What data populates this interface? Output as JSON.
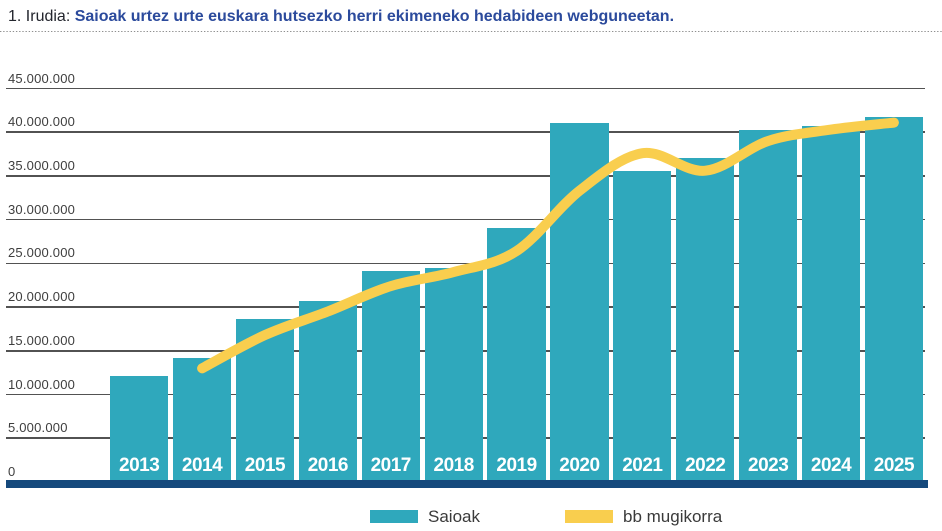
{
  "figure": {
    "label_prefix": "1. Irudia:",
    "title": "Saioak urtez urte euskara hutsezko herri ekimeneko hedabideen webguneetan."
  },
  "chart_data": {
    "type": "bar",
    "title": "Saioak urtez urte euskara hutsezko herri ekimeneko hedabideen webguneetan.",
    "categories": [
      "2013",
      "2014",
      "2015",
      "2016",
      "2017",
      "2018",
      "2019",
      "2020",
      "2021",
      "2022",
      "2023",
      "2024",
      "2025"
    ],
    "series": [
      {
        "name": "Saioak",
        "type": "bar",
        "color": "#2fa8bc",
        "values": [
          12100000,
          14200000,
          18600000,
          20700000,
          24100000,
          24500000,
          29000000,
          41000000,
          35600000,
          37100000,
          40300000,
          40700000,
          41700000
        ]
      },
      {
        "name": "bb mugikorra",
        "type": "line",
        "color": "#f9ce4e",
        "values": [
          null,
          13000000,
          16800000,
          19500000,
          22400000,
          24000000,
          26400000,
          33300000,
          37600000,
          35600000,
          39000000,
          40300000,
          41100000
        ]
      }
    ],
    "ylim": [
      0,
      45000000
    ],
    "ytick_interval": 5000000,
    "yticks": [
      {
        "value": 0,
        "label": "0"
      },
      {
        "value": 5000000,
        "label": "5.000.000"
      },
      {
        "value": 10000000,
        "label": "10.000.000"
      },
      {
        "value": 15000000,
        "label": "15.000.000"
      },
      {
        "value": 20000000,
        "label": "20.000.000"
      },
      {
        "value": 25000000,
        "label": "25.000.000"
      },
      {
        "value": 30000000,
        "label": "30.000.000"
      },
      {
        "value": 35000000,
        "label": "35.000.000"
      },
      {
        "value": 40000000,
        "label": "40.000.000"
      },
      {
        "value": 45000000,
        "label": "45.000.000"
      }
    ],
    "grid": "horizontal",
    "legend_position": "bottom"
  },
  "legend": {
    "items": [
      {
        "label": "Saioak",
        "color": "#2fa8bc"
      },
      {
        "label": "bb mugikorra",
        "color": "#f9ce4e"
      }
    ]
  },
  "colors": {
    "bar": "#2fa8bc",
    "line": "#f9ce4e",
    "baseline": "#15497c",
    "title_accent": "#2b4a9c",
    "gridline": "#525252"
  }
}
